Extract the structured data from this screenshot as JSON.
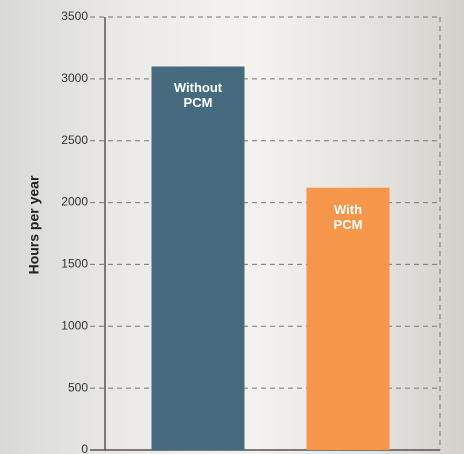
{
  "chart_data": {
    "type": "bar",
    "y_label": "Hours per year",
    "categories": [
      "Without PCM",
      "With PCM"
    ],
    "values": [
      3100,
      2120
    ],
    "colors": [
      "#466b7e",
      "#f5964a"
    ],
    "ylim": [
      0,
      3500
    ],
    "yticks": [
      0,
      500,
      1000,
      1500,
      2000,
      2500,
      3000,
      3500
    ],
    "grid": true
  }
}
